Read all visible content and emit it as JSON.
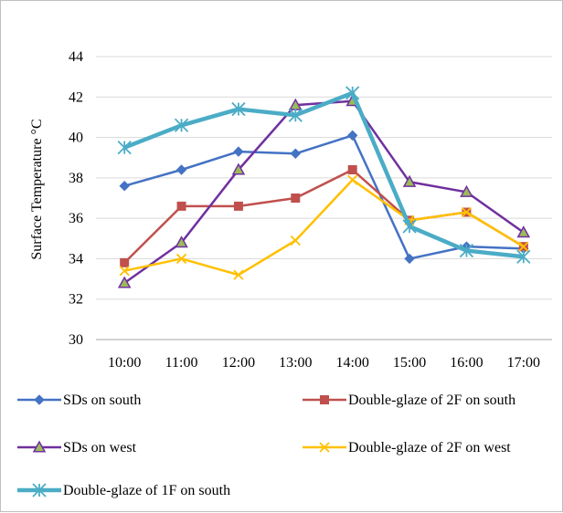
{
  "chart_data": {
    "type": "line",
    "title": "",
    "xlabel": "",
    "ylabel": "Surface Temperature °C",
    "ylim": [
      30,
      44
    ],
    "yticks": [
      30,
      32,
      34,
      36,
      38,
      40,
      42,
      44
    ],
    "grid": "horizontal",
    "legend_position": "bottom",
    "categories": [
      "10:00",
      "11:00",
      "12:00",
      "13:00",
      "14:00",
      "15:00",
      "16:00",
      "17:00"
    ],
    "series": [
      {
        "name": "SDs on south",
        "color": "#4472c4",
        "marker": "diamond",
        "values": [
          37.6,
          38.4,
          39.3,
          39.2,
          40.1,
          34.0,
          34.6,
          34.5
        ]
      },
      {
        "name": "Double-glaze of 2F on south",
        "color": "#c0504d",
        "marker": "square",
        "values": [
          33.8,
          36.6,
          36.6,
          37.0,
          38.4,
          35.9,
          36.3,
          34.6
        ]
      },
      {
        "name": "SDs on west",
        "color": "#7030a0",
        "marker": "triangle",
        "values": [
          32.8,
          34.8,
          38.4,
          41.6,
          41.8,
          37.8,
          37.3,
          35.3
        ]
      },
      {
        "name": "Double-glaze  of 2F on west",
        "color": "#ffc000",
        "marker": "x",
        "values": [
          33.4,
          34.0,
          33.2,
          34.9,
          37.9,
          35.9,
          36.3,
          34.6
        ]
      },
      {
        "name": "Double-glaze  of 1F on south",
        "color": "#4bacc6",
        "marker": "asterisk",
        "values": [
          39.5,
          40.6,
          41.4,
          41.1,
          42.2,
          35.6,
          34.4,
          34.1
        ]
      }
    ]
  }
}
